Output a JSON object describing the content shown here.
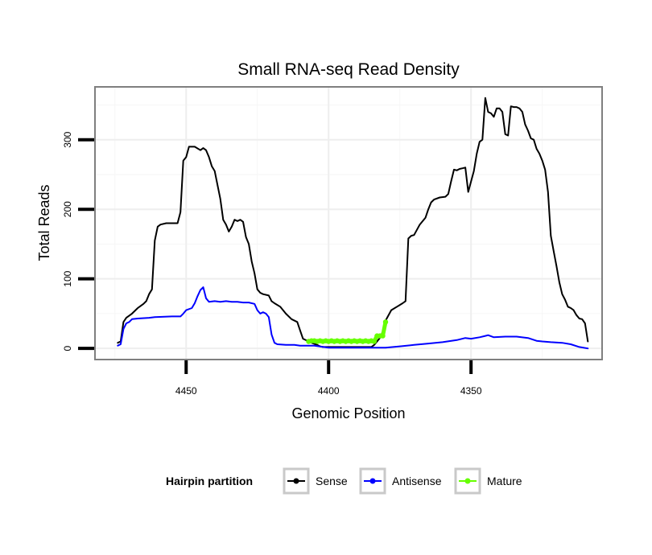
{
  "chart_data": {
    "type": "line",
    "title": "Small RNA-seq Read Density",
    "xlabel": "Genomic Position",
    "ylabel": "Total Reads",
    "xlim": [
      4482,
      4304
    ],
    "ylim": [
      -16,
      376
    ],
    "x_ticks": [
      4450,
      4400,
      4350
    ],
    "y_ticks": [
      0,
      100,
      200,
      300
    ],
    "grid": true,
    "legend": {
      "title": "Hairpin partition",
      "position": "bottom",
      "entries": [
        "Sense",
        "Antisense",
        "Mature"
      ]
    },
    "series": [
      {
        "name": "Sense",
        "color": "#000000",
        "points": [
          [
            4474,
            8
          ],
          [
            4473,
            10
          ],
          [
            4472,
            38
          ],
          [
            4471,
            44
          ],
          [
            4469,
            50
          ],
          [
            4467,
            58
          ],
          [
            4465,
            64
          ],
          [
            4464,
            68
          ],
          [
            4463,
            78
          ],
          [
            4462,
            85
          ],
          [
            4461,
            155
          ],
          [
            4460,
            175
          ],
          [
            4459,
            178
          ],
          [
            4457,
            180
          ],
          [
            4453,
            180
          ],
          [
            4452,
            196
          ],
          [
            4451,
            270
          ],
          [
            4450,
            275
          ],
          [
            4449,
            290
          ],
          [
            4447,
            290
          ],
          [
            4445,
            285
          ],
          [
            4444,
            288
          ],
          [
            4443,
            285
          ],
          [
            4442,
            275
          ],
          [
            4441,
            262
          ],
          [
            4440,
            255
          ],
          [
            4439,
            235
          ],
          [
            4438,
            215
          ],
          [
            4437,
            185
          ],
          [
            4436,
            178
          ],
          [
            4435,
            168
          ],
          [
            4434,
            175
          ],
          [
            4433,
            185
          ],
          [
            4432,
            183
          ],
          [
            4431,
            185
          ],
          [
            4430,
            182
          ],
          [
            4429,
            160
          ],
          [
            4428,
            150
          ],
          [
            4427,
            125
          ],
          [
            4426,
            108
          ],
          [
            4425,
            85
          ],
          [
            4424,
            80
          ],
          [
            4423,
            78
          ],
          [
            4421,
            76
          ],
          [
            4420,
            68
          ],
          [
            4419,
            65
          ],
          [
            4417,
            60
          ],
          [
            4415,
            50
          ],
          [
            4413,
            42
          ],
          [
            4411,
            38
          ],
          [
            4410,
            26
          ],
          [
            4409,
            14
          ],
          [
            4407,
            10
          ],
          [
            4406,
            8
          ],
          [
            4404,
            5
          ],
          [
            4403,
            3
          ],
          [
            4402,
            2
          ],
          [
            4400,
            2
          ],
          [
            4395,
            2
          ],
          [
            4385,
            2
          ],
          [
            4384,
            5
          ],
          [
            4382,
            15
          ],
          [
            4381,
            24
          ],
          [
            4380,
            40
          ],
          [
            4378,
            55
          ],
          [
            4376,
            60
          ],
          [
            4374,
            65
          ],
          [
            4373,
            68
          ],
          [
            4372,
            158
          ],
          [
            4371,
            162
          ],
          [
            4370,
            163
          ],
          [
            4368,
            178
          ],
          [
            4366,
            188
          ],
          [
            4365,
            200
          ],
          [
            4364,
            210
          ],
          [
            4363,
            214
          ],
          [
            4361,
            217
          ],
          [
            4359,
            218
          ],
          [
            4358,
            222
          ],
          [
            4357,
            240
          ],
          [
            4356,
            257
          ],
          [
            4355,
            256
          ],
          [
            4354,
            258
          ],
          [
            4353,
            259
          ],
          [
            4352,
            260
          ],
          [
            4351,
            225
          ],
          [
            4350,
            240
          ],
          [
            4349,
            255
          ],
          [
            4348,
            280
          ],
          [
            4347,
            297
          ],
          [
            4346,
            300
          ],
          [
            4345,
            360
          ],
          [
            4344,
            340
          ],
          [
            4343,
            338
          ],
          [
            4342,
            333
          ],
          [
            4341,
            345
          ],
          [
            4340,
            345
          ],
          [
            4339,
            340
          ],
          [
            4338,
            308
          ],
          [
            4337,
            306
          ],
          [
            4336,
            348
          ],
          [
            4335,
            347
          ],
          [
            4334,
            347
          ],
          [
            4333,
            345
          ],
          [
            4332,
            340
          ],
          [
            4331,
            322
          ],
          [
            4330,
            313
          ],
          [
            4329,
            302
          ],
          [
            4328,
            300
          ],
          [
            4327,
            287
          ],
          [
            4326,
            280
          ],
          [
            4325,
            270
          ],
          [
            4324,
            257
          ],
          [
            4323,
            225
          ],
          [
            4322,
            162
          ],
          [
            4321,
            140
          ],
          [
            4320,
            118
          ],
          [
            4319,
            95
          ],
          [
            4318,
            78
          ],
          [
            4317,
            70
          ],
          [
            4316,
            60
          ],
          [
            4315,
            58
          ],
          [
            4314,
            55
          ],
          [
            4313,
            48
          ],
          [
            4312,
            43
          ],
          [
            4311,
            42
          ],
          [
            4310,
            36
          ],
          [
            4309,
            10
          ]
        ]
      },
      {
        "name": "Antisense",
        "color": "#0000ff",
        "points": [
          [
            4474,
            4
          ],
          [
            4473,
            6
          ],
          [
            4472,
            28
          ],
          [
            4471,
            36
          ],
          [
            4470,
            38
          ],
          [
            4469,
            42
          ],
          [
            4467,
            43
          ],
          [
            4463,
            44
          ],
          [
            4461,
            45
          ],
          [
            4455,
            46
          ],
          [
            4452,
            46
          ],
          [
            4451,
            50
          ],
          [
            4450,
            55
          ],
          [
            4448,
            58
          ],
          [
            4447,
            65
          ],
          [
            4446,
            75
          ],
          [
            4445,
            84
          ],
          [
            4444,
            88
          ],
          [
            4443,
            72
          ],
          [
            4442,
            67
          ],
          [
            4440,
            68
          ],
          [
            4438,
            67
          ],
          [
            4436,
            68
          ],
          [
            4434,
            67
          ],
          [
            4432,
            67
          ],
          [
            4430,
            66
          ],
          [
            4428,
            66
          ],
          [
            4426,
            64
          ],
          [
            4425,
            55
          ],
          [
            4424,
            50
          ],
          [
            4423,
            52
          ],
          [
            4422,
            50
          ],
          [
            4421,
            45
          ],
          [
            4420,
            20
          ],
          [
            4419,
            8
          ],
          [
            4418,
            6
          ],
          [
            4415,
            5
          ],
          [
            4412,
            5
          ],
          [
            4410,
            4
          ],
          [
            4405,
            4
          ],
          [
            4400,
            1
          ],
          [
            4390,
            1
          ],
          [
            4380,
            1
          ],
          [
            4375,
            3
          ],
          [
            4370,
            5
          ],
          [
            4365,
            7
          ],
          [
            4360,
            9
          ],
          [
            4355,
            12
          ],
          [
            4352,
            15
          ],
          [
            4350,
            14
          ],
          [
            4347,
            16
          ],
          [
            4345,
            18
          ],
          [
            4344,
            19
          ],
          [
            4342,
            16
          ],
          [
            4338,
            17
          ],
          [
            4334,
            17
          ],
          [
            4330,
            15
          ],
          [
            4327,
            11
          ],
          [
            4325,
            10
          ],
          [
            4322,
            9
          ],
          [
            4318,
            8
          ],
          [
            4315,
            6
          ],
          [
            4312,
            2
          ],
          [
            4309,
            0
          ]
        ]
      },
      {
        "name": "Mature",
        "color": "#66ff00",
        "points": [
          [
            4407,
            10
          ],
          [
            4406,
            11
          ],
          [
            4405,
            11
          ],
          [
            4404,
            10
          ],
          [
            4403,
            11
          ],
          [
            4402,
            10
          ],
          [
            4401,
            11
          ],
          [
            4400,
            10
          ],
          [
            4399,
            11
          ],
          [
            4398,
            10
          ],
          [
            4397,
            11
          ],
          [
            4396,
            10
          ],
          [
            4395,
            11
          ],
          [
            4394,
            10
          ],
          [
            4393,
            11
          ],
          [
            4392,
            10
          ],
          [
            4391,
            11
          ],
          [
            4390,
            10
          ],
          [
            4389,
            11
          ],
          [
            4388,
            10
          ],
          [
            4387,
            11
          ],
          [
            4386,
            10
          ],
          [
            4385,
            11
          ],
          [
            4384,
            10
          ],
          [
            4383,
            18
          ],
          [
            4382,
            18
          ],
          [
            4381,
            18
          ],
          [
            4380,
            38
          ]
        ]
      }
    ]
  }
}
